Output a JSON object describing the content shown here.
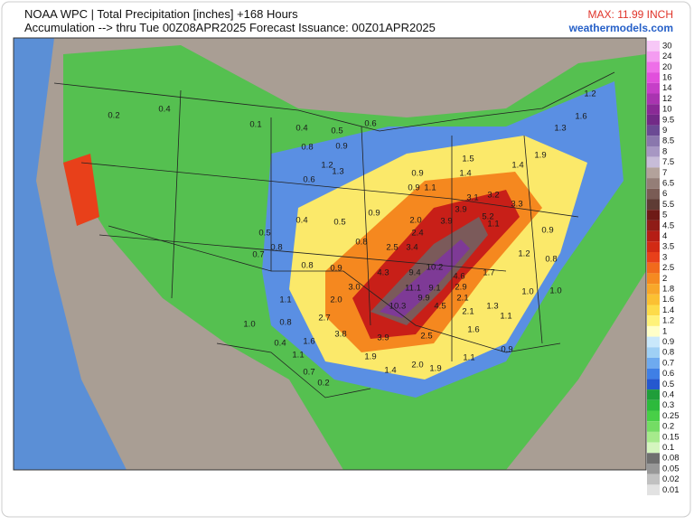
{
  "header": {
    "line1": "NOAA WPC | Total Precipitation [inches] +168 Hours",
    "line2": "Accumulation --> thru Tue 00Z08APR2025   Forecast Issuance: 00Z01APR2025",
    "max": "MAX: 11.99 INCH",
    "site": "weathermodels.com"
  },
  "legend": {
    "levels": [
      30,
      24,
      20,
      16,
      14,
      12,
      10,
      9.5,
      9,
      8.5,
      8,
      7.5,
      7,
      6.5,
      6,
      5.5,
      5,
      4.5,
      4,
      3.5,
      3,
      2.5,
      2,
      1.8,
      1.6,
      1.4,
      1.2,
      1,
      0.9,
      0.8,
      0.7,
      0.6,
      0.5,
      0.4,
      0.3,
      0.25,
      0.2,
      0.15,
      0.1,
      0.08,
      0.05,
      0.02,
      0.01
    ],
    "colors": [
      "#f7c8f7",
      "#f49cf1",
      "#ee6fe8",
      "#e14fdc",
      "#c63fc8",
      "#a934b0",
      "#8a2a96",
      "#722a87",
      "#6b4a94",
      "#8a77ad",
      "#a797c3",
      "#c7bcd8",
      "#b3a29b",
      "#947e77",
      "#7a5c55",
      "#5e3c35",
      "#6e1a16",
      "#8f1c17",
      "#b51d15",
      "#d22a14",
      "#e8401a",
      "#f16a1c",
      "#f58a21",
      "#f8a72a",
      "#fbc033",
      "#fddb4a",
      "#fff27a",
      "#ffffc8",
      "#c9e8fb",
      "#9fd0f5",
      "#6eaaef",
      "#3f7fe5",
      "#2558cf",
      "#1f9e3a",
      "#2dba3c",
      "#48cf47",
      "#74dc64",
      "#a6ea8c",
      "#d5f5bf",
      "#6f6f6f",
      "#989898",
      "#c1c1c1",
      "#e2e2e2"
    ]
  },
  "map_labels": [
    "1.2",
    "1.6",
    "1.3",
    "1.9",
    "1.4",
    "1.5",
    "1.4",
    "0.9",
    "0.9",
    "1.1",
    "0.4",
    "0.5",
    "0.6",
    "0.8",
    "0.9",
    "1.2",
    "1.3",
    "0.6",
    "0.4",
    "0.5",
    "0.9",
    "2.0",
    "3.9",
    "3.9",
    "3.1",
    "3.2",
    "3.3",
    "5.2",
    "2.4",
    "3.4",
    "2.5",
    "0.8",
    "0.8",
    "0.9",
    "4.3",
    "9.4",
    "10.2",
    "4.6",
    "3.0",
    "11.1",
    "9.1",
    "2.9",
    "2.1",
    "2.0",
    "9.9",
    "4.5",
    "10.3",
    "2.7",
    "1.1",
    "0.8",
    "1.0",
    "3.8",
    "3.9",
    "2.5",
    "1.6",
    "2.1",
    "1.3",
    "1.1",
    "1.6",
    "0.4",
    "1.1",
    "1.9",
    "2.0",
    "1.9",
    "1.1",
    "0.9",
    "0.7",
    "0.2",
    "1.4",
    "0.2",
    "0.1",
    "0.4",
    "0.5",
    "0.8",
    "0.7",
    "0.9",
    "0.8",
    "1.0",
    "1.0",
    "1.2",
    "1.7",
    "1.1"
  ]
}
